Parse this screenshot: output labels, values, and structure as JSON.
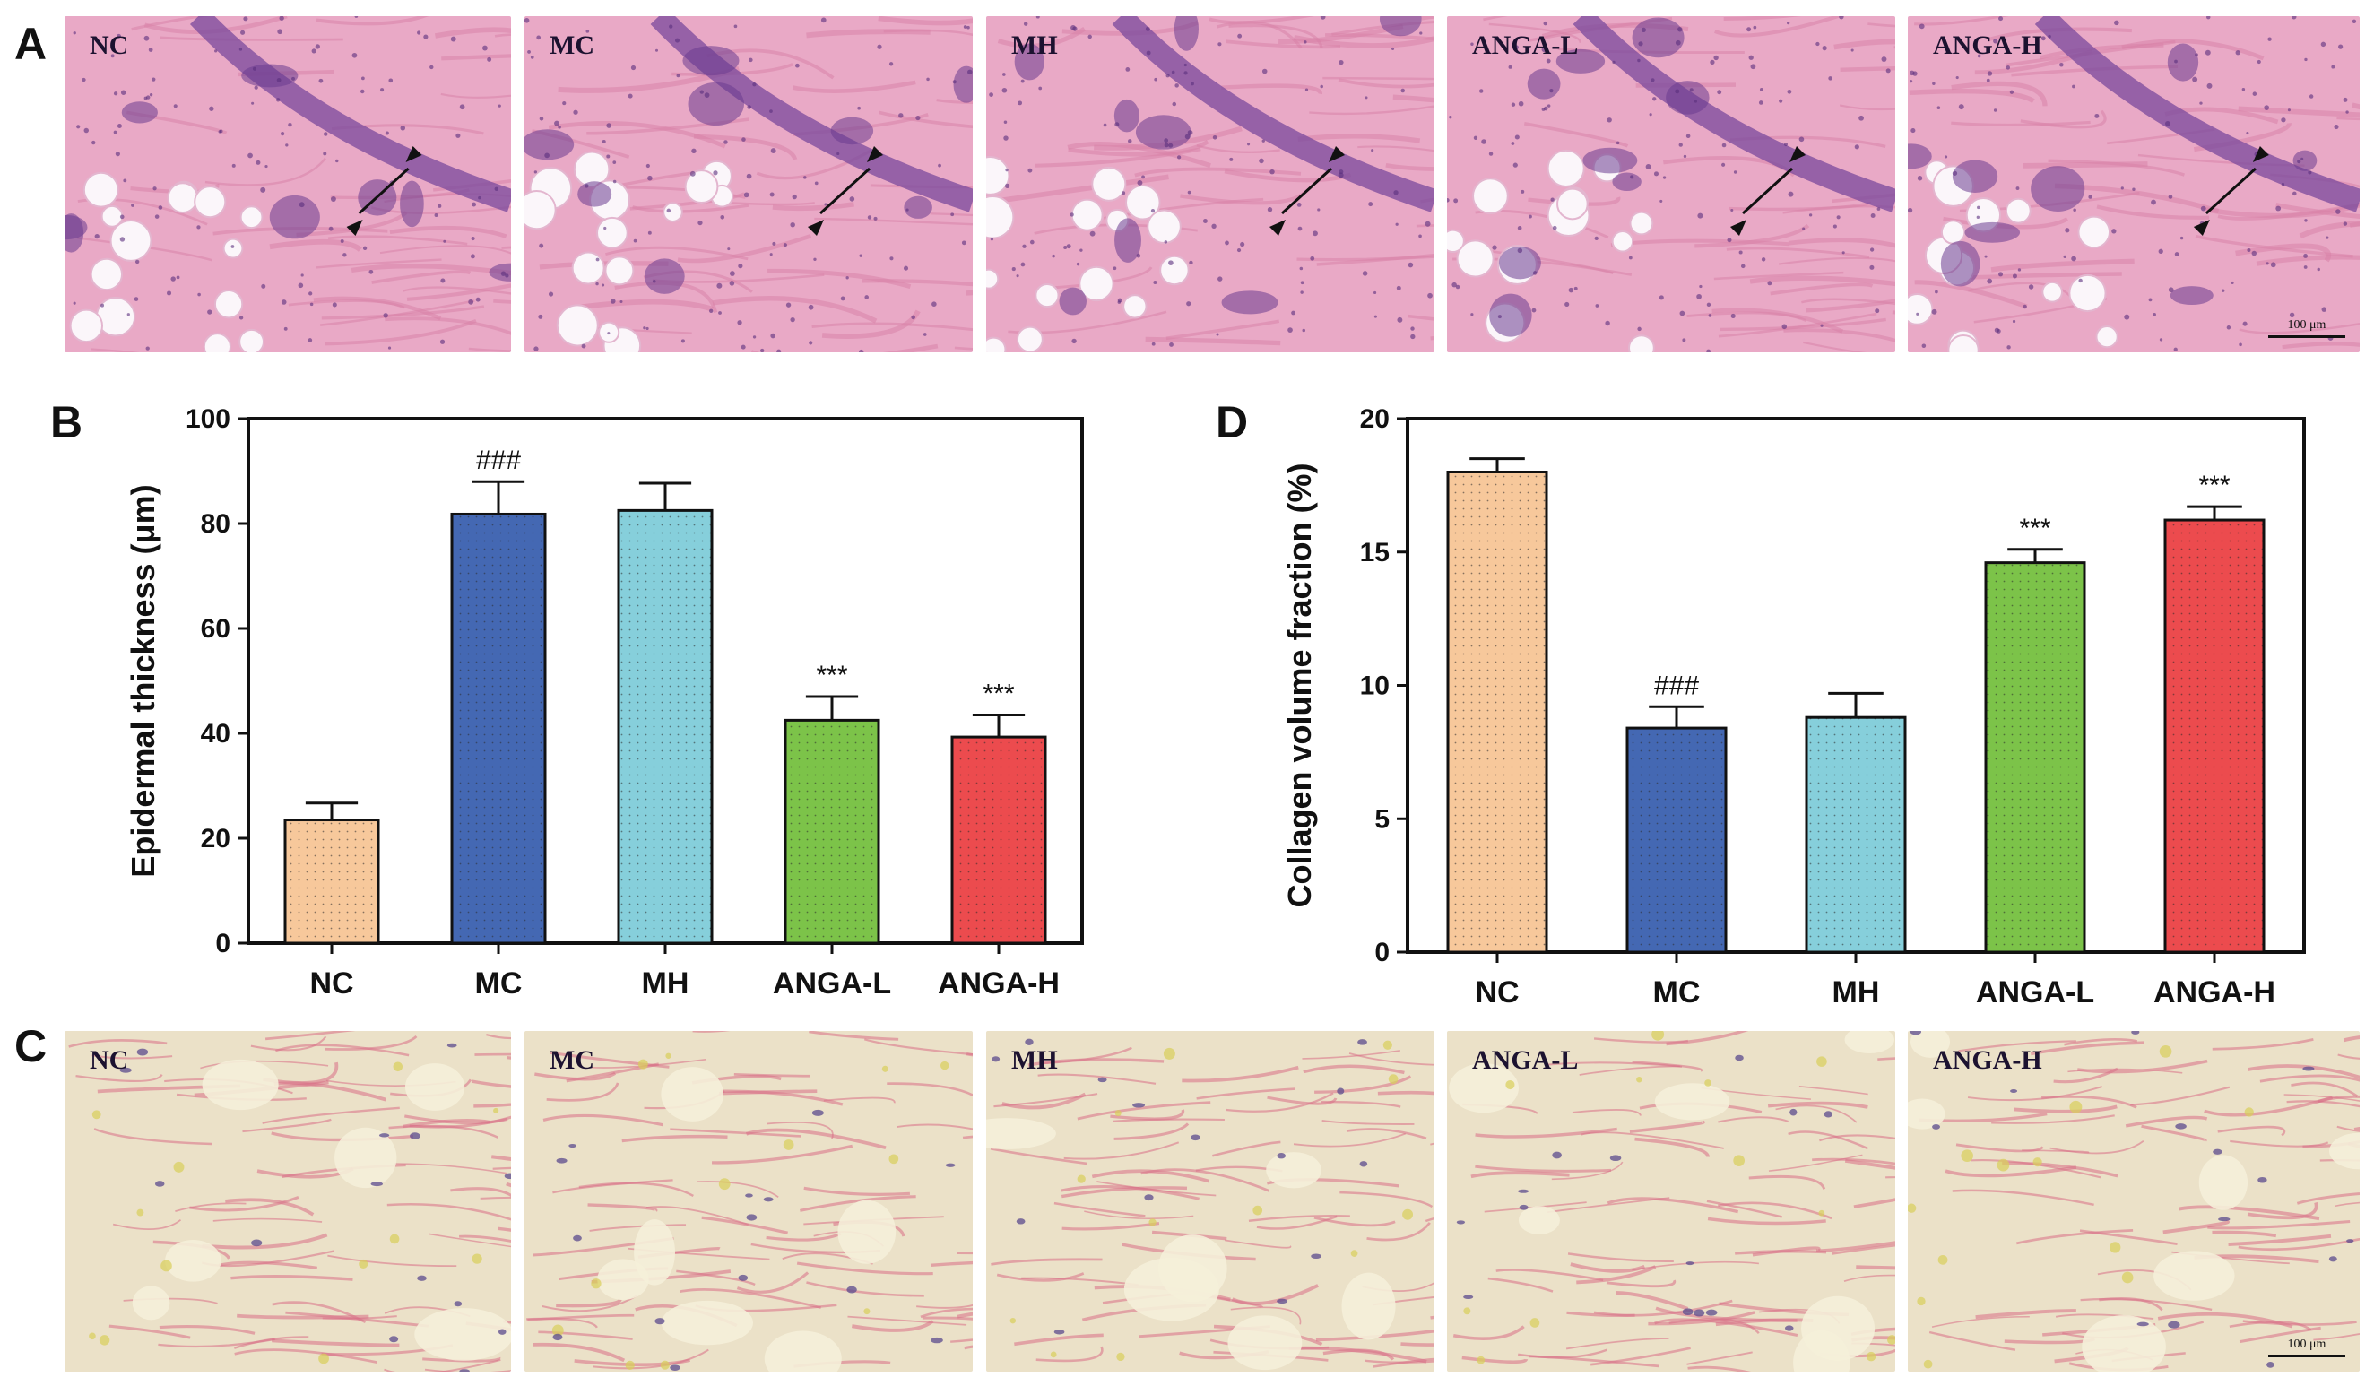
{
  "figure": {
    "panel_letters": {
      "A": "A",
      "B": "B",
      "C": "C",
      "D": "D"
    },
    "panel_a": {
      "tiles": [
        {
          "label": "NC",
          "palette": "he"
        },
        {
          "label": "MC",
          "palette": "he"
        },
        {
          "label": "MH",
          "palette": "he"
        },
        {
          "label": "ANGA-L",
          "palette": "he"
        },
        {
          "label": "ANGA-H",
          "palette": "he"
        }
      ],
      "scale_bar_text": "100 μm"
    },
    "panel_c": {
      "tiles": [
        {
          "label": "NC",
          "palette": "vg"
        },
        {
          "label": "MC",
          "palette": "vg"
        },
        {
          "label": "MH",
          "palette": "vg"
        },
        {
          "label": "ANGA-L",
          "palette": "vg"
        },
        {
          "label": "ANGA-H",
          "palette": "vg"
        }
      ],
      "scale_bar_text": "100 μm"
    },
    "colors": {
      "NC": "#f7c89b",
      "MC": "#4468b3",
      "MH": "#86cfdb",
      "ANGA-L": "#7cc349",
      "ANGA-H": "#ec4b4e",
      "he_background": "#e9a9c6",
      "he_nuclei": "#6b3d8f",
      "vg_background": "#ebe1c8",
      "vg_fiber": "#d86f86"
    }
  },
  "chart_data": [
    {
      "type": "bar",
      "panel": "B",
      "categories": [
        "NC",
        "MC",
        "MH",
        "ANGA-L",
        "ANGA-H"
      ],
      "values": [
        23.5,
        81.8,
        82.5,
        42.5,
        39.3
      ],
      "errors": [
        3.2,
        6.2,
        5.2,
        4.5,
        4.2
      ],
      "significance": [
        "",
        "###",
        "",
        "***",
        "***"
      ],
      "ylabel": "Epidermal thickness (μm)",
      "xlabel": "",
      "ylim": [
        0,
        100
      ],
      "yticks": [
        0,
        20,
        40,
        60,
        80,
        100
      ],
      "grid": false,
      "legend": "none"
    },
    {
      "type": "bar",
      "panel": "D",
      "categories": [
        "NC",
        "MC",
        "MH",
        "ANGA-L",
        "ANGA-H"
      ],
      "values": [
        18.0,
        8.4,
        8.8,
        14.6,
        16.2
      ],
      "errors": [
        0.5,
        0.8,
        0.9,
        0.5,
        0.5
      ],
      "significance": [
        "",
        "###",
        "",
        "***",
        "***"
      ],
      "ylabel": "Collagen volume fraction (%)",
      "xlabel": "",
      "ylim": [
        0,
        20
      ],
      "yticks": [
        0,
        5,
        10,
        15,
        20
      ],
      "grid": false,
      "legend": "none"
    }
  ]
}
